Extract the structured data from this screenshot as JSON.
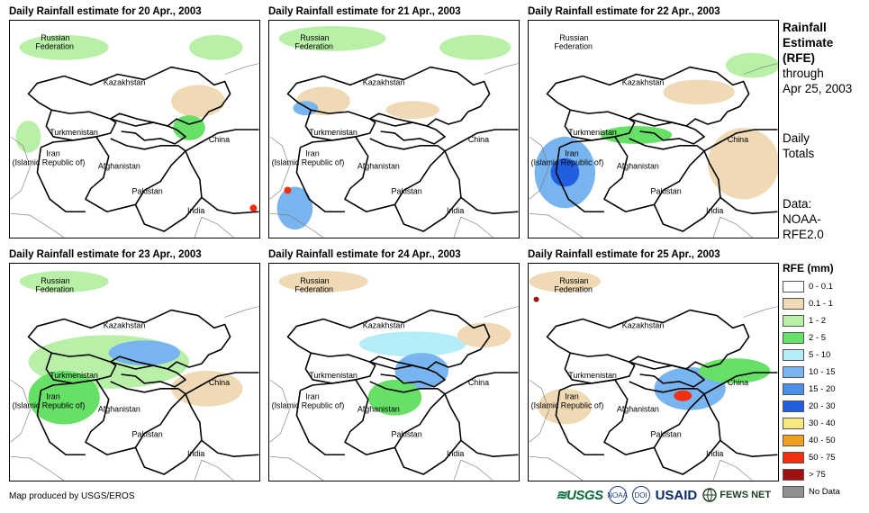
{
  "panels": [
    {
      "title": "Daily Rainfall estimate for 20 Apr., 2003",
      "day": 20
    },
    {
      "title": "Daily Rainfall estimate for 21 Apr., 2003",
      "day": 21
    },
    {
      "title": "Daily Rainfall estimate for 22 Apr., 2003",
      "day": 22
    },
    {
      "title": "Daily Rainfall estimate for 23 Apr., 2003",
      "day": 23
    },
    {
      "title": "Daily Rainfall estimate for 24 Apr., 2003",
      "day": 24
    },
    {
      "title": "Daily Rainfall estimate for 25 Apr., 2003",
      "day": 25
    }
  ],
  "map_labels": {
    "russia_1": "Russian",
    "russia_2": "Federation",
    "kazakhstan": "Kazakhstan",
    "turkmenistan": "Turkmenistan",
    "china": "China",
    "iran_1": "Iran",
    "iran_2": "(Islamic Republic of)",
    "afghanistan": "Afghanistan",
    "pakistan": "Pakistan",
    "india": "India"
  },
  "sidebar": {
    "title_1": "Rainfall",
    "title_2": "Estimate",
    "title_3": "(RFE)",
    "through_1": "through",
    "through_2": "Apr 25, 2003",
    "totals_1": "Daily",
    "totals_2": "Totals",
    "data_1": "Data:",
    "data_2": "NOAA-",
    "data_3": "RFE2.0"
  },
  "legend": {
    "title": "RFE (mm)",
    "items": [
      {
        "label": "0 - 0.1",
        "color": "#ffffff"
      },
      {
        "label": "0.1 - 1",
        "color": "#f0d9b5"
      },
      {
        "label": "1 - 2",
        "color": "#b8f0a8"
      },
      {
        "label": "2 - 5",
        "color": "#66e066"
      },
      {
        "label": "5 - 10",
        "color": "#b4ecf8"
      },
      {
        "label": "10 - 15",
        "color": "#78b4f0"
      },
      {
        "label": "15 - 20",
        "color": "#4a90e8"
      },
      {
        "label": "20 - 30",
        "color": "#2060e0"
      },
      {
        "label": "30 - 40",
        "color": "#f8e880"
      },
      {
        "label": "40 - 50",
        "color": "#f0a020"
      },
      {
        "label": "50 - 75",
        "color": "#f03010"
      },
      {
        "label": "> 75",
        "color": "#a01010"
      },
      {
        "label": "No Data",
        "color": "#909090"
      }
    ]
  },
  "footer": {
    "credit": "Map produced by USGS/EROS",
    "logo_usgs": "≋USGS",
    "logo_noaa": "NOAA",
    "logo_doi": "DOI",
    "logo_usaid": "USAID",
    "logo_fews": "FEWS NET"
  }
}
